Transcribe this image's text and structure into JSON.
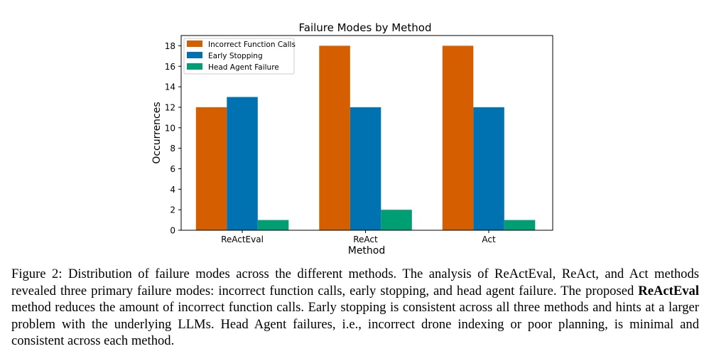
{
  "chart_data": {
    "type": "bar",
    "title": "Failure Modes by Method",
    "xlabel": "Method",
    "ylabel": "Occurrences",
    "categories": [
      "ReActEval",
      "ReAct",
      "Act"
    ],
    "ylim": [
      0,
      19
    ],
    "yticks": [
      0,
      2,
      4,
      6,
      8,
      10,
      12,
      14,
      16,
      18
    ],
    "grid": false,
    "legend_position": "top-left",
    "series": [
      {
        "name": "Incorrect Function Calls",
        "color": "#d55e00",
        "values": [
          12,
          18,
          18
        ]
      },
      {
        "name": "Early Stopping",
        "color": "#0072b2",
        "values": [
          13,
          12,
          12
        ]
      },
      {
        "name": "Head Agent Failure",
        "color": "#009e73",
        "values": [
          1,
          2,
          1
        ]
      }
    ]
  },
  "caption": {
    "prefix": "Figure 2: Distribution of failure modes across the different methods. The analysis of ReActEval, ReAct, and Act methods revealed three primary failure modes: incorrect function calls, early stopping, and head agent failure. The proposed ",
    "bold": "ReActEval",
    "suffix": " method reduces the amount of incorrect function calls. Early stopping is consistent across all three methods and hints at a larger problem with the underlying LLMs. Head Agent failures, i.e., incorrect drone indexing or poor planning, is minimal and consistent across each method."
  }
}
